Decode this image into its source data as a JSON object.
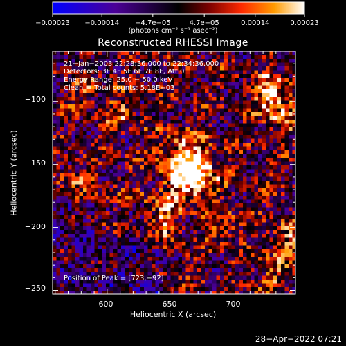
{
  "chart_data": {
    "type": "heatmap",
    "title": "Reconstructed RHESSI Image",
    "xlabel": "Heliocentric X (arcsec)",
    "ylabel": "Heliocentric Y (arcsec)",
    "xlim": [
      558,
      745
    ],
    "ylim": [
      -253,
      -60
    ],
    "x_ticks": [
      600,
      650,
      700
    ],
    "x_tick_labels": [
      "600",
      "650",
      "700"
    ],
    "y_ticks": [
      -100,
      -150,
      -200,
      -250
    ],
    "y_tick_labels": [
      "−100",
      "−150",
      "−200",
      "−250"
    ],
    "colorbar": {
      "range": [
        -0.00023,
        0.00023
      ],
      "ticks": [
        -0.00023,
        -0.00014,
        -4.7e-05,
        4.7e-05,
        0.00014,
        0.00023
      ],
      "tick_labels": [
        "−0.00023",
        "−0.00014",
        "−4.7e−05",
        "4.7e−05",
        "0.00014",
        "0.00023"
      ],
      "units": "(photons cm⁻² s⁻¹ asec⁻²)",
      "colormap": [
        "#0000ff",
        "#4b0096",
        "#000000",
        "#7a0000",
        "#ff2a00",
        "#ff9b00",
        "#ffffff"
      ]
    },
    "annotations": [
      "21−Jan−2003 22:28:36.000 to 22:34:36.000",
      "Detectors: 3F 4F 5F 6F 7F 8F, Att 0",
      "Energy Range: 25.0 − 50.0 keV",
      "Clean     Total counts: 5.18E+03"
    ],
    "peak_label": "Position of Peak = [723,−92]",
    "peak_position": [
      723,
      -92
    ],
    "image_description": "pixelated intensity map, brightest blobs near x=660, y=-150 and near x=725, y=-95"
  },
  "footer": {
    "timestamp": "28−Apr−2022 07:21"
  }
}
